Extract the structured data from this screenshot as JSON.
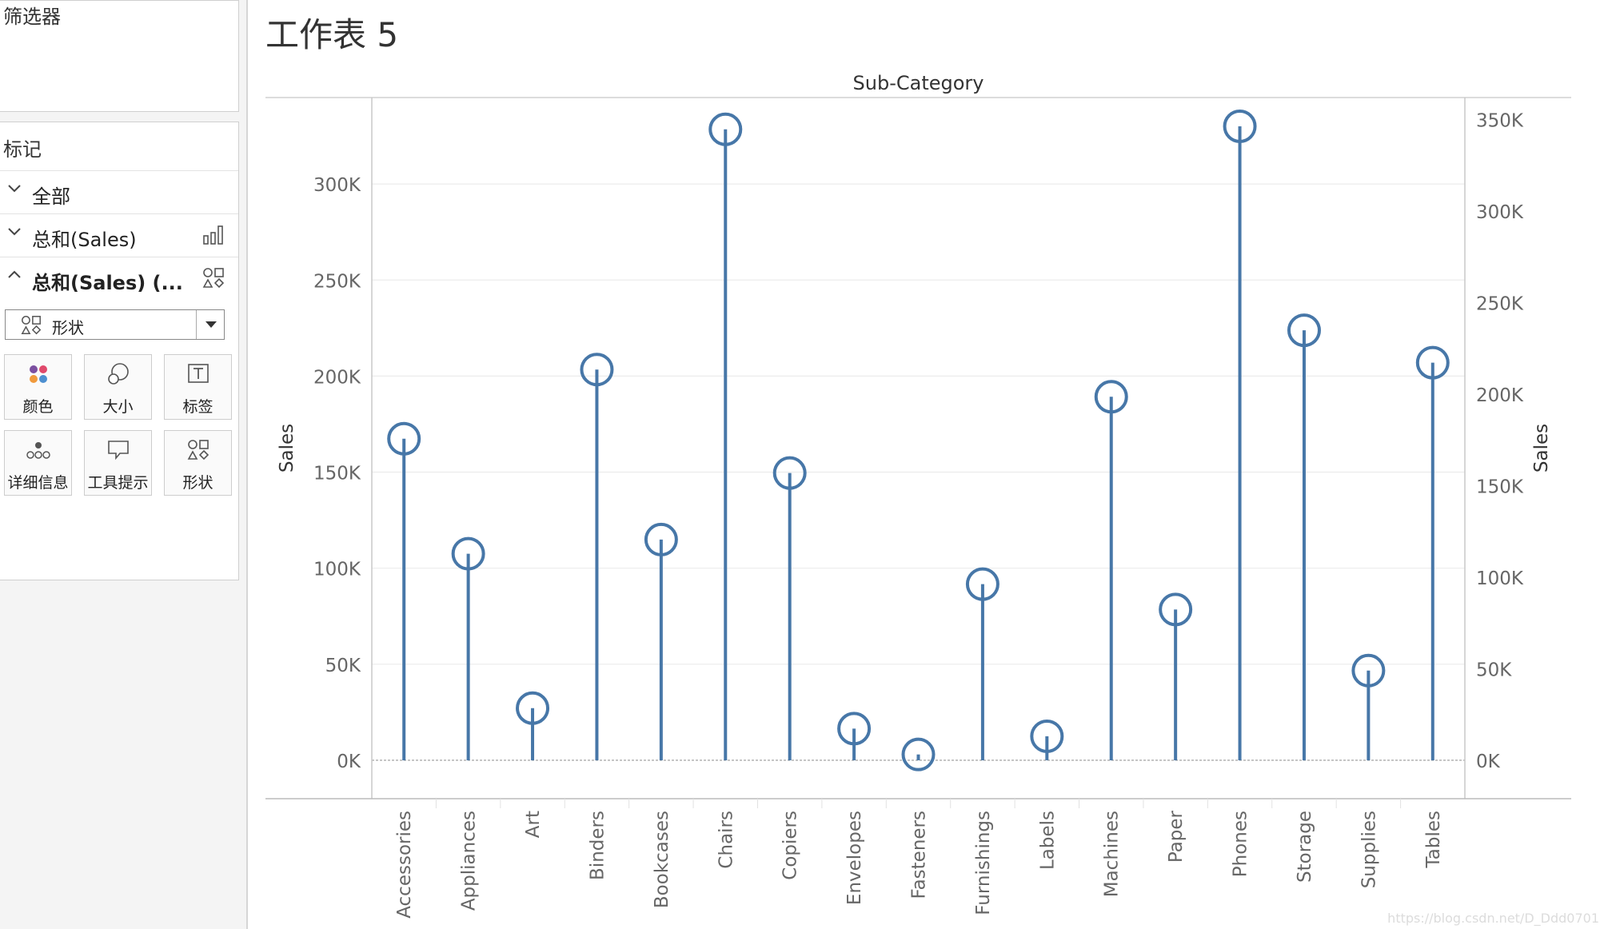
{
  "filters": {
    "title": "筛选器"
  },
  "marks": {
    "title": "标记",
    "rows": [
      {
        "label": "全部",
        "icon": "chevron-down-icon"
      },
      {
        "label": "总和(Sales)",
        "icon": "bar-chart-icon"
      },
      {
        "label": "总和(Sales) (...",
        "icon": "shapes-icon"
      }
    ],
    "mark_type": "形状",
    "buttons": [
      {
        "label": "颜色",
        "icon": "color-dots-icon"
      },
      {
        "label": "大小",
        "icon": "size-icon"
      },
      {
        "label": "标签",
        "icon": "label-icon"
      },
      {
        "label": "详细信息",
        "icon": "detail-icon"
      },
      {
        "label": "工具提示",
        "icon": "tooltip-icon"
      },
      {
        "label": "形状",
        "icon": "shapes-icon"
      }
    ]
  },
  "sheet": {
    "title": "工作表 5"
  },
  "watermark": "https://blog.csdn.net/D_Ddd0701",
  "colors": {
    "mark": "#4777a8",
    "grid": "#ececec",
    "axis": "#c8c8c8"
  },
  "chart_data": {
    "type": "lollipop",
    "title": "Sub-Category",
    "ylabel_left": "Sales",
    "ylabel_right": "Sales",
    "categories": [
      "Accessories",
      "Appliances",
      "Art",
      "Binders",
      "Bookcases",
      "Chairs",
      "Copiers",
      "Envelopes",
      "Fasteners",
      "Furnishings",
      "Labels",
      "Machines",
      "Paper",
      "Phones",
      "Storage",
      "Supplies",
      "Tables"
    ],
    "series": [
      {
        "values": [
          167380,
          107532,
          27119,
          203413,
          114880,
          328449,
          149528,
          16476,
          3024,
          91705,
          12486,
          189239,
          78479,
          330007,
          223844,
          46674,
          206966
        ]
      }
    ],
    "left_axis": {
      "ylim": [
        -20000,
        345000
      ],
      "ticks": [
        0,
        50000,
        100000,
        150000,
        200000,
        250000,
        300000
      ],
      "tick_labels": [
        "0K",
        "50K",
        "100K",
        "150K",
        "200K",
        "250K",
        "300K"
      ]
    },
    "right_axis": {
      "ylim": [
        -21000,
        362000
      ],
      "ticks": [
        0,
        50000,
        100000,
        150000,
        200000,
        250000,
        300000,
        350000
      ],
      "tick_labels": [
        "0K",
        "50K",
        "100K",
        "150K",
        "200K",
        "250K",
        "300K",
        "350K"
      ]
    },
    "grid": true,
    "zero_line": "dashed"
  }
}
